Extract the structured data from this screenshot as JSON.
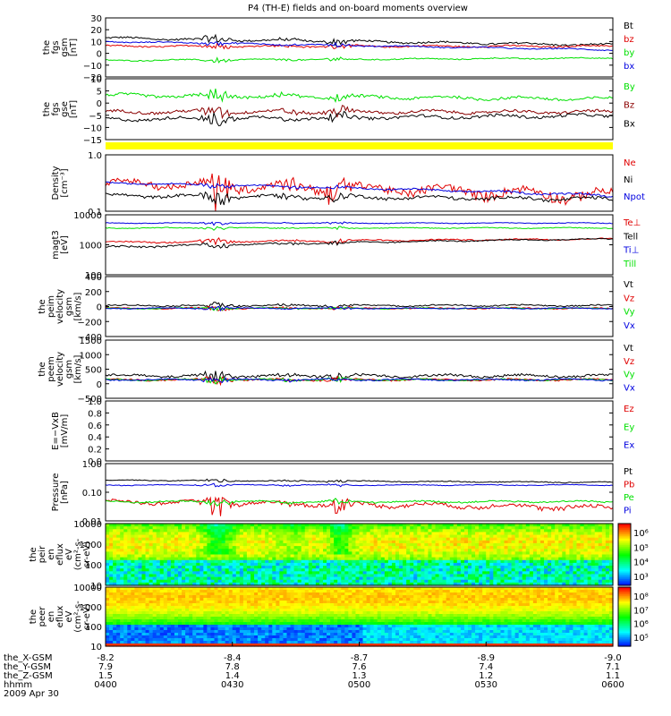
{
  "title": "P4 (TH-E) fields and on-board moments overview",
  "colors": {
    "black": "#000000",
    "red": "#e00000",
    "green": "#00e000",
    "blue": "#0000e0",
    "darkred": "#8b0000",
    "yellow": "#ffff00"
  },
  "footer": {
    "rows": [
      {
        "label": "the_X-GSM",
        "values": [
          "-8.2",
          "-8.4",
          "-8.7",
          "-8.9",
          "-9.0"
        ]
      },
      {
        "label": "the_Y-GSM",
        "values": [
          "7.9",
          "7.8",
          "7.6",
          "7.4",
          "7.1"
        ]
      },
      {
        "label": "the_Z-GSM",
        "values": [
          "1.5",
          "1.4",
          "1.3",
          "1.2",
          "1.1"
        ]
      },
      {
        "label": "hhmm",
        "values": [
          "0400",
          "0430",
          "0500",
          "0530",
          "0600"
        ]
      }
    ],
    "date": "2009 Apr 30"
  },
  "chart_data": [
    {
      "type": "line",
      "panel": "fgs_gsm",
      "ylabel": [
        "the",
        "fgs",
        "gsm",
        "[nT]"
      ],
      "ylim": [
        -20,
        30
      ],
      "yticks": [
        "30",
        "20",
        "10",
        "0",
        "−10",
        "−20"
      ],
      "series": [
        {
          "name": "Bt",
          "color": "#000000",
          "base": 13,
          "amp": 2.5,
          "trend": -6
        },
        {
          "name": "bz",
          "color": "#e00000",
          "base": 6,
          "amp": 2,
          "trend": 0
        },
        {
          "name": "by",
          "color": "#00e000",
          "base": -6,
          "amp": 1.5,
          "trend": 2
        },
        {
          "name": "bx",
          "color": "#0000e0",
          "base": 10,
          "amp": 1.5,
          "trend": -7
        }
      ]
    },
    {
      "type": "line",
      "panel": "fgs_gse",
      "ylabel": [
        "the",
        "fgs",
        "gse",
        "[nT]"
      ],
      "ylim": [
        -18,
        15
      ],
      "yticks": [
        "10",
        "5",
        "0",
        "−5",
        "−10",
        "−15"
      ],
      "series": [
        {
          "name": "By",
          "color": "#00e000",
          "base": 6,
          "amp": 2.5,
          "trend": -2
        },
        {
          "name": "Bz",
          "color": "#8b0000",
          "base": -3,
          "amp": 2.5,
          "trend": 0
        },
        {
          "name": "Bx",
          "color": "#000000",
          "base": -7,
          "amp": 2.5,
          "trend": 2
        }
      ]
    },
    {
      "type": "line",
      "panel": "density",
      "log": true,
      "ylabel": [
        "Density",
        "[cm⁻³]"
      ],
      "ylim": [
        0.1,
        1.2
      ],
      "yticks": [
        "1.0",
        "0.1"
      ],
      "series": [
        {
          "name": "Ne",
          "color": "#e00000",
          "base": 0.35,
          "amp": 0.15,
          "trend": -0.15
        },
        {
          "name": "Ni",
          "color": "#000000",
          "base": 0.2,
          "amp": 0.04,
          "trend": -0.03
        },
        {
          "name": "Npot",
          "color": "#0000e0",
          "base": 0.35,
          "amp": 0.03,
          "trend": -0.15
        }
      ]
    },
    {
      "type": "line",
      "panel": "temperature",
      "log": true,
      "ylabel": [
        "magt3",
        "[eV]"
      ],
      "ylim": [
        100,
        15000
      ],
      "yticks": [
        "10000",
        "1000",
        "100"
      ],
      "series": [
        {
          "name": "Te⊥",
          "color": "#e00000",
          "base": 1500,
          "amp": 300,
          "trend": 500
        },
        {
          "name": "Tell",
          "color": "#000000",
          "base": 1000,
          "amp": 250,
          "trend": 1000
        },
        {
          "name": "Ti⊥",
          "color": "#0000e0",
          "base": 7500,
          "amp": 700,
          "trend": 0
        },
        {
          "name": "Till",
          "color": "#00e000",
          "base": 5000,
          "amp": 500,
          "trend": 0
        }
      ]
    },
    {
      "type": "line",
      "panel": "peim_velocity",
      "ylabel": [
        "the",
        "peim",
        "velocity",
        "gsm",
        "[km/s]"
      ],
      "ylim": [
        -400,
        450
      ],
      "yticks": [
        "400",
        "200",
        "0",
        "−200",
        "−400"
      ],
      "series": [
        {
          "name": "Vt",
          "color": "#000000",
          "base": 40,
          "amp": 30,
          "trend": 0
        },
        {
          "name": "Vz",
          "color": "#e00000",
          "base": 0,
          "amp": 25,
          "trend": 0
        },
        {
          "name": "Vy",
          "color": "#00e000",
          "base": 0,
          "amp": 20,
          "trend": 0
        },
        {
          "name": "Vx",
          "color": "#0000e0",
          "base": 0,
          "amp": 20,
          "trend": 0
        }
      ]
    },
    {
      "type": "line",
      "panel": "peem_velocity",
      "ylabel": [
        "the",
        "peem",
        "velocity",
        "gsm",
        "[km/s]"
      ],
      "ylim": [
        -700,
        1500
      ],
      "yticks": [
        "1500",
        "1000",
        "500",
        "0",
        "−500"
      ],
      "series": [
        {
          "name": "Vt",
          "color": "#000000",
          "base": 150,
          "amp": 150,
          "trend": 0
        },
        {
          "name": "Vz",
          "color": "#e00000",
          "base": 0,
          "amp": 100,
          "trend": 0
        },
        {
          "name": "Vy",
          "color": "#00e000",
          "base": 0,
          "amp": 80,
          "trend": 0
        },
        {
          "name": "Vx",
          "color": "#0000e0",
          "base": 0,
          "amp": 80,
          "trend": 0
        }
      ]
    },
    {
      "type": "line",
      "panel": "efield",
      "ylabel": [
        "E=−VxB",
        "[mV/m]"
      ],
      "ylim": [
        0,
        1
      ],
      "yticks": [
        "1.0",
        "0.8",
        "0.6",
        "0.4",
        "0.2",
        "0.0"
      ],
      "series": [
        {
          "name": "Ez",
          "color": "#e00000"
        },
        {
          "name": "Ey",
          "color": "#00e000"
        },
        {
          "name": "Ex",
          "color": "#0000e0"
        }
      ]
    },
    {
      "type": "line",
      "panel": "pressure",
      "log": true,
      "ylabel": [
        "Pressure",
        "[nPa]"
      ],
      "ylim": [
        0.01,
        1.2
      ],
      "yticks": [
        "1.00",
        "0.10",
        "0.01"
      ],
      "series": [
        {
          "name": "Pt",
          "color": "#000000",
          "base": 0.3,
          "amp": 0.03,
          "trend": -0.05
        },
        {
          "name": "Pb",
          "color": "#e00000",
          "base": 0.05,
          "amp": 0.02,
          "trend": -0.02
        },
        {
          "name": "Pe",
          "color": "#00e000",
          "base": 0.05,
          "amp": 0.01,
          "trend": 0
        },
        {
          "name": "Pi",
          "color": "#0000e0",
          "base": 0.2,
          "amp": 0.02,
          "trend": 0
        }
      ]
    },
    {
      "type": "heatmap",
      "panel": "peir_spectrogram",
      "ylabel": [
        "the",
        "peir",
        "en",
        "eflux",
        "eV",
        "(cm²-s-",
        "sr-eV)"
      ],
      "yticks": [
        "10000",
        "1000",
        "100",
        "10"
      ],
      "colorbar_ticks": [
        "10⁶",
        "10⁵",
        "10⁴",
        "10³"
      ]
    },
    {
      "type": "heatmap",
      "panel": "peer_spectrogram",
      "ylabel": [
        "the",
        "peer",
        "en",
        "eflux",
        "eV",
        "(cm²-s-",
        "sr-eV)"
      ],
      "yticks": [
        "10000",
        "1000",
        "100",
        "10"
      ],
      "colorbar_ticks": [
        "10⁸",
        "10⁷",
        "10⁶",
        "10⁵"
      ]
    }
  ]
}
